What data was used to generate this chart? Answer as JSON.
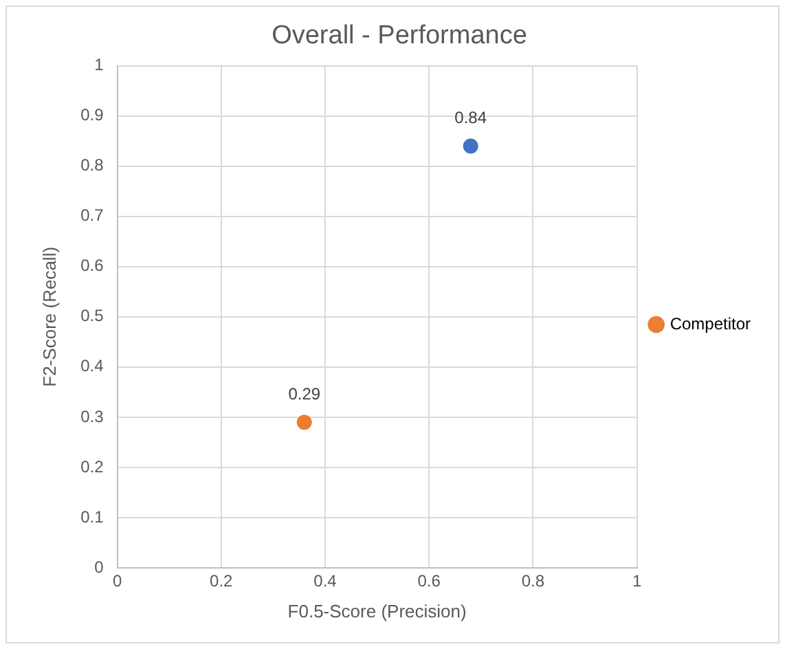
{
  "chart_data": {
    "type": "scatter",
    "title": "Overall - Performance",
    "xlabel": "F0.5-Score (Precision)",
    "ylabel": "F2-Score (Recall)",
    "series": [
      {
        "color": "#4472c4",
        "x": [
          0.68
        ],
        "values": [
          0.84
        ]
      },
      {
        "name": "Competitor",
        "color": "#ed7d31",
        "x": [
          0.36
        ],
        "values": [
          0.29
        ]
      }
    ],
    "xlim": [
      0,
      1
    ],
    "xticks": [
      0,
      0.2,
      0.4,
      0.6,
      0.8,
      1
    ],
    "ylim": [
      0,
      1
    ],
    "yticks": [
      0,
      0.1,
      0.2,
      0.3,
      0.4,
      0.5,
      0.6,
      0.7,
      0.8,
      0.9,
      1
    ],
    "grid": true,
    "legend": "right",
    "marker": "circle",
    "data_labels": true
  }
}
